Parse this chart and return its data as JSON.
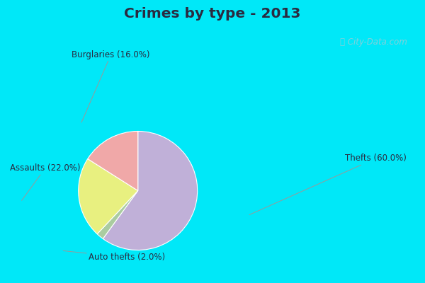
{
  "title": "Crimes by type - 2013",
  "slices": [
    {
      "label": "Thefts",
      "pct": 60.0,
      "color": "#c0b0d8"
    },
    {
      "label": "Auto thefts",
      "pct": 2.0,
      "color": "#aacca0"
    },
    {
      "label": "Assaults",
      "pct": 22.0,
      "color": "#e8f080"
    },
    {
      "label": "Burglaries",
      "pct": 16.0,
      "color": "#f0a8a8"
    }
  ],
  "bg_cyan": "#00e8f8",
  "bg_inner": "#d0eedc",
  "title_color": "#2a2a40",
  "label_color": "#2a2a40",
  "label_fontsize": 8.5,
  "title_fontsize": 14.5,
  "watermark": "City-Data.com"
}
